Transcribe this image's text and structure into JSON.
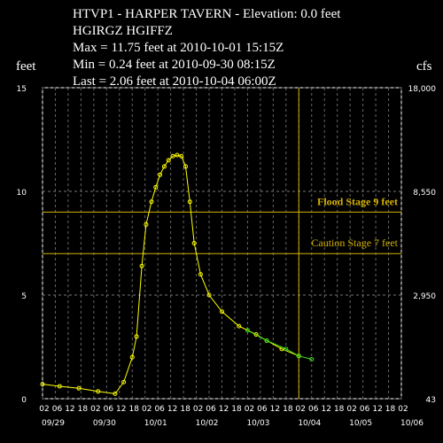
{
  "chart_data": {
    "type": "line",
    "title_lines": [
      "HTVP1 - HARPER TAVERN - Elevation: 0.0 feet",
      "HGIRGZ    HGIFFZ",
      "Max = 11.75 feet at 2010-10-01 15:15Z",
      "Min = 0.24 feet at 2010-09-30 08:15Z",
      "Last = 2.06 feet at 2010-10-04 06:00Z"
    ],
    "y_label": "feet",
    "y2_label": "cfs",
    "xlim": [
      0,
      168
    ],
    "ylim": [
      0,
      15
    ],
    "yticks": [
      0,
      5,
      10,
      15
    ],
    "y2ticks": [
      {
        "value": 43,
        "label": "43",
        "stage": 0
      },
      {
        "value": 2950,
        "label": "2,950",
        "stage": 5
      },
      {
        "value": 8550,
        "label": "8,550",
        "stage": 10
      },
      {
        "value": 18000,
        "label": "18,000",
        "stage": 15
      }
    ],
    "xticks": [
      {
        "value": 0,
        "label": "02"
      },
      {
        "value": 6,
        "label": "06"
      },
      {
        "value": 12,
        "label": "12"
      },
      {
        "value": 18,
        "label": "18"
      },
      {
        "value": 24,
        "label": "02"
      },
      {
        "value": 30,
        "label": "06"
      },
      {
        "value": 36,
        "label": "12"
      },
      {
        "value": 42,
        "label": "18"
      },
      {
        "value": 48,
        "label": "02"
      },
      {
        "value": 54,
        "label": "06"
      },
      {
        "value": 60,
        "label": "12"
      },
      {
        "value": 66,
        "label": "18"
      },
      {
        "value": 72,
        "label": "02"
      },
      {
        "value": 78,
        "label": "06"
      },
      {
        "value": 84,
        "label": "12"
      },
      {
        "value": 90,
        "label": "18"
      },
      {
        "value": 96,
        "label": "02"
      },
      {
        "value": 102,
        "label": "06"
      },
      {
        "value": 108,
        "label": "12"
      },
      {
        "value": 114,
        "label": "18"
      },
      {
        "value": 120,
        "label": "02"
      },
      {
        "value": 126,
        "label": "06"
      },
      {
        "value": 132,
        "label": "12"
      },
      {
        "value": 138,
        "label": "18"
      },
      {
        "value": 144,
        "label": "02"
      },
      {
        "value": 150,
        "label": "06"
      },
      {
        "value": 156,
        "label": "12"
      },
      {
        "value": 162,
        "label": "18"
      },
      {
        "value": 168,
        "label": "02"
      }
    ],
    "date_labels": [
      {
        "value": 0,
        "label": "09/29"
      },
      {
        "value": 24,
        "label": "09/30"
      },
      {
        "value": 48,
        "label": "10/01"
      },
      {
        "value": 72,
        "label": "10/02"
      },
      {
        "value": 96,
        "label": "10/03"
      },
      {
        "value": 120,
        "label": "10/04"
      },
      {
        "value": 144,
        "label": "10/05"
      },
      {
        "value": 168,
        "label": "10/06"
      }
    ],
    "grid": true,
    "current_time": 120,
    "stage_lines": [
      {
        "value": 9,
        "label": "Flood Stage  9 feet",
        "color": "#d4b000"
      },
      {
        "value": 7,
        "label": "Caution Stage 7 feet",
        "color": "#d4b000"
      }
    ],
    "series": [
      {
        "color": "#ffff00",
        "x": [
          0,
          8,
          17,
          26,
          34,
          38,
          42,
          44,
          46.5,
          48.5,
          51,
          53,
          55,
          57,
          59,
          61,
          63,
          65,
          67,
          69,
          71,
          74,
          78,
          84,
          92,
          100,
          105,
          112,
          120
        ],
        "values": [
          0.7,
          0.6,
          0.5,
          0.35,
          0.24,
          0.8,
          2,
          3,
          6.4,
          8.4,
          9.5,
          10.2,
          10.8,
          11.2,
          11.5,
          11.7,
          11.75,
          11.7,
          11.2,
          9.5,
          7.5,
          6,
          5,
          4.2,
          3.5,
          3.1,
          2.8,
          2.4,
          2.06
        ]
      },
      {
        "color": "#44dd22",
        "x": [
          96,
          105,
          114,
          120,
          126
        ],
        "values": [
          3.3,
          2.8,
          2.4,
          2.06,
          1.9
        ]
      }
    ]
  }
}
